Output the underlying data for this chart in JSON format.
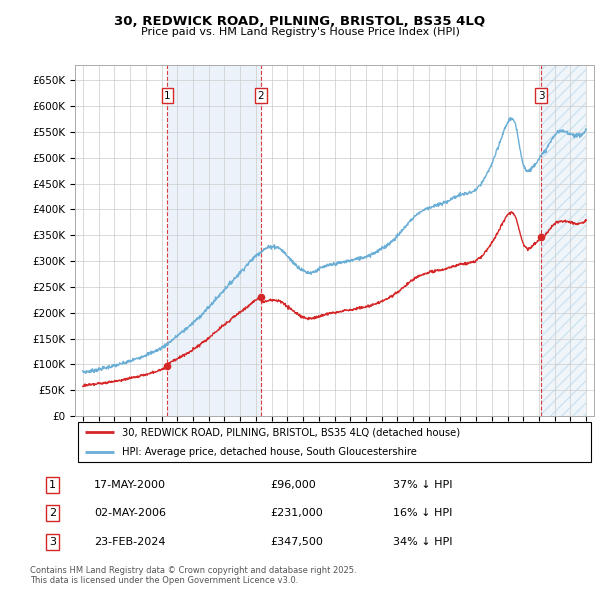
{
  "title": "30, REDWICK ROAD, PILNING, BRISTOL, BS35 4LQ",
  "subtitle": "Price paid vs. HM Land Registry's House Price Index (HPI)",
  "legend_line1": "30, REDWICK ROAD, PILNING, BRISTOL, BS35 4LQ (detached house)",
  "legend_line2": "HPI: Average price, detached house, South Gloucestershire",
  "sales": [
    {
      "label": 1,
      "date": "17-MAY-2000",
      "price": 96000,
      "year": 2000.38
    },
    {
      "label": 2,
      "date": "02-MAY-2006",
      "price": 231000,
      "year": 2006.33
    },
    {
      "label": 3,
      "date": "23-FEB-2024",
      "price": 347500,
      "year": 2024.14
    }
  ],
  "footer": "Contains HM Land Registry data © Crown copyright and database right 2025.\nThis data is licensed under the Open Government Licence v3.0.",
  "ylim": [
    0,
    680000
  ],
  "xlim": [
    1994.5,
    2027.5
  ],
  "yticks": [
    0,
    50000,
    100000,
    150000,
    200000,
    250000,
    300000,
    350000,
    400000,
    450000,
    500000,
    550000,
    600000,
    650000
  ],
  "ytick_labels": [
    "£0",
    "£50K",
    "£100K",
    "£150K",
    "£200K",
    "£250K",
    "£300K",
    "£350K",
    "£400K",
    "£450K",
    "£500K",
    "£550K",
    "£600K",
    "£650K"
  ],
  "hpi_color": "#6baed6",
  "property_color": "#d62728",
  "vline_color": "#d62728",
  "shade_color": "#c6dbef",
  "background_color": "#ffffff"
}
